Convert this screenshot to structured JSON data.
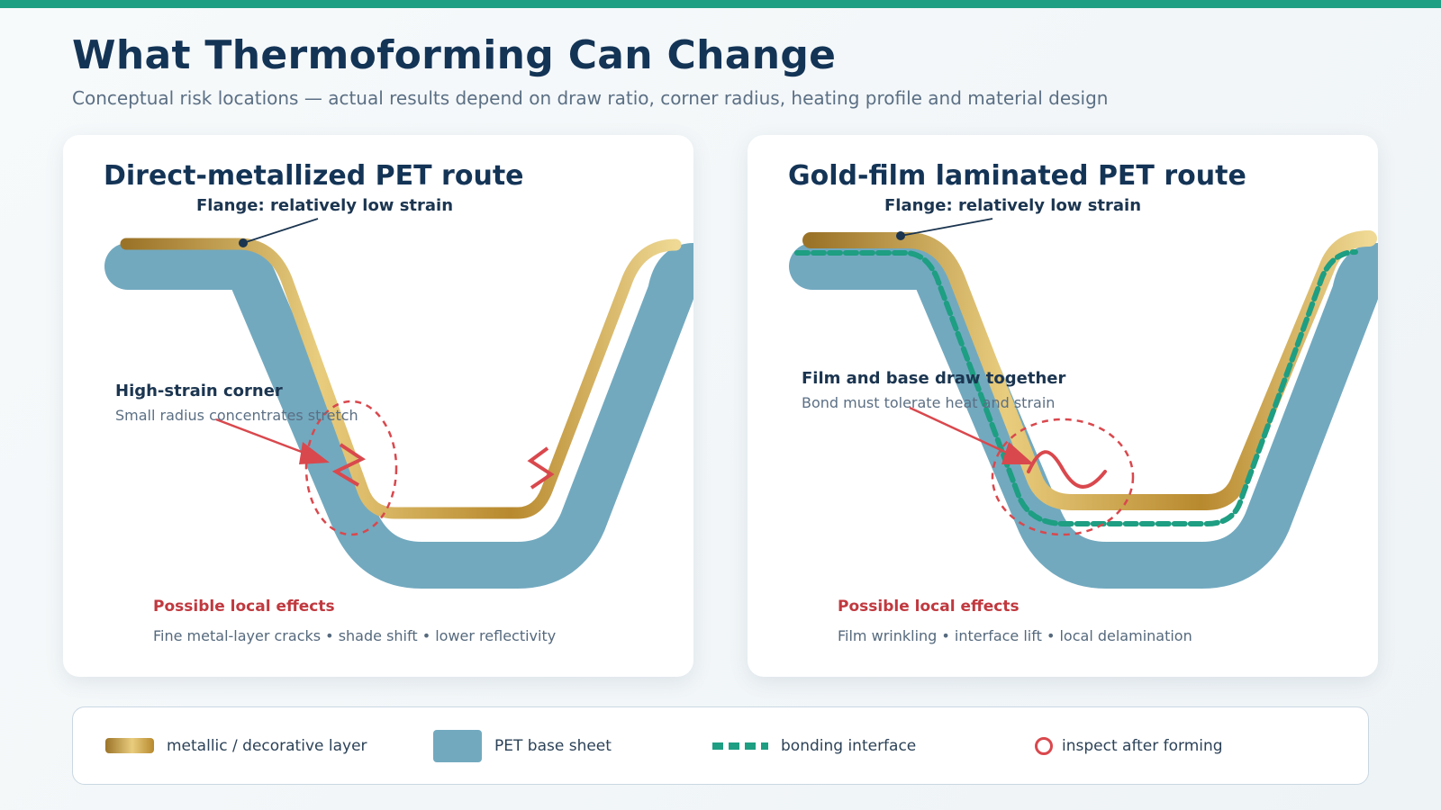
{
  "page": {
    "title": "What Thermoforming Can Change",
    "subtitle": "Conceptual risk locations — actual results depend on draw ratio, corner radius, heating profile and material design"
  },
  "colors": {
    "accent": "#1e9e82",
    "navy": "#143456",
    "pet_base": "#72a9bf",
    "metal_dark": "#9b7328",
    "metal_light": "#e9cd7e",
    "bond": "#1e9e82",
    "risk": "#d9484d"
  },
  "panels": [
    {
      "title": "Direct-metallized PET route",
      "flange_label": "Flange: relatively low strain",
      "callout_title": "High-strain corner",
      "callout_text": "Small radius concentrates stretch",
      "effects_title": "Possible local effects",
      "effects_text": "Fine metal-layer cracks • shade shift • lower reflectivity",
      "markers": [
        "crack-marks",
        "inspect-ring"
      ]
    },
    {
      "title": "Gold-film laminated PET route",
      "flange_label": "Flange: relatively low strain",
      "callout_title": "Film and base draw together",
      "callout_text": "Bond must tolerate heat and strain",
      "effects_title": "Possible local effects",
      "effects_text": "Film wrinkling • interface lift • local delamination",
      "markers": [
        "wrinkle-wave",
        "bond-line",
        "inspect-ring"
      ]
    }
  ],
  "legend": [
    {
      "icon": "metal-swatch",
      "label": "metallic / decorative layer"
    },
    {
      "icon": "pet-swatch",
      "label": "PET base sheet"
    },
    {
      "icon": "bond-dash",
      "label": "bonding interface"
    },
    {
      "icon": "inspect-ring-icon",
      "label": "inspect after forming"
    }
  ]
}
